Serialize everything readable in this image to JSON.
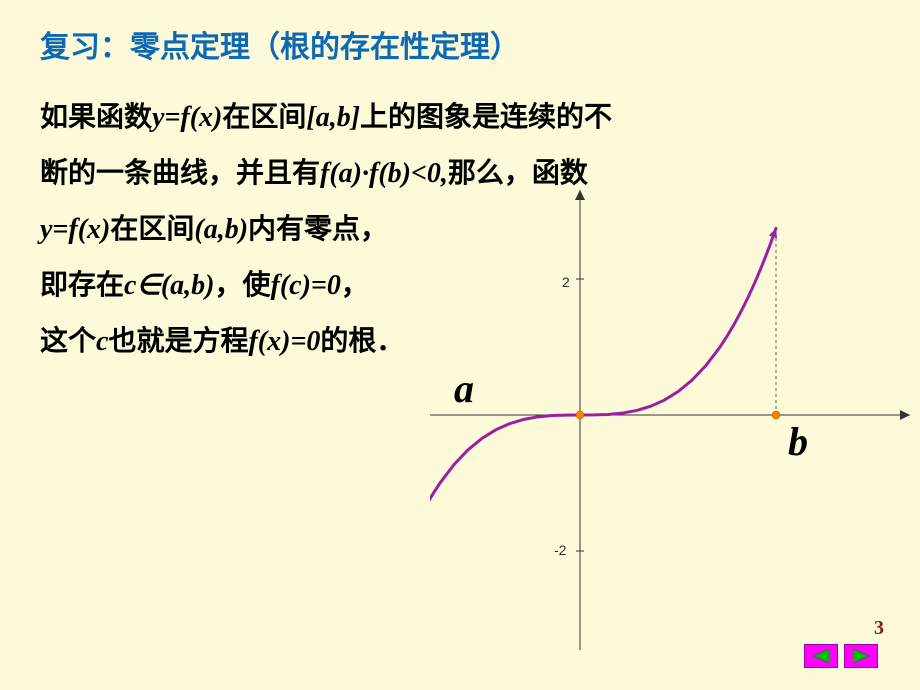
{
  "title": "复习：零点定理（根的存在性定理）",
  "para": {
    "l1a": "如果函数",
    "l1b": "y=f(x)",
    "l1c": "在区间",
    "l1d": "[a,b]",
    "l1e": "上的图象是连续的不",
    "l2a": "断的一条曲线，并且有",
    "l2b": "f(a)·f(b)<0,",
    "l2c": "那么，函数",
    "l3a": "y=f(x)",
    "l3b": "在区间",
    "l3c": "(a,b)",
    "l3d": "内有零点，",
    "l4a": "即存在",
    "l4b": "c∈(a,b)",
    "l4c": "，使",
    "l4d": "f(c)=0",
    "l4e": "，",
    "l5a": "这个",
    "l5b": "c",
    "l5c": "也就是方程",
    "l5d": "f(x)=0",
    "l5e": "的根．"
  },
  "chart": {
    "type": "line",
    "curve_color": "#9b1fa3",
    "curve_width": 3,
    "axis_color": "#333333",
    "axis_width": 1,
    "grid_dash": "3,3",
    "grid_color": "#666666",
    "background": "#fcfad8",
    "x_range": [
      -2,
      2
    ],
    "y_range": [
      -3,
      3
    ],
    "y_ticks": [
      {
        "v": 2,
        "label": "2"
      },
      {
        "v": -2,
        "label": "-2"
      }
    ],
    "a_x": -1.4,
    "b_x": 1.4,
    "zero_x": 0,
    "label_a": "a",
    "label_b": "b",
    "points": [
      [
        -1.4,
        -2.744
      ],
      [
        -1.35,
        -2.46
      ],
      [
        -1.3,
        -2.197
      ],
      [
        -1.25,
        -1.953
      ],
      [
        -1.2,
        -1.728
      ],
      [
        -1.15,
        -1.521
      ],
      [
        -1.1,
        -1.331
      ],
      [
        -1.05,
        -1.158
      ],
      [
        -1.0,
        -1.0
      ],
      [
        -0.9,
        -0.729
      ],
      [
        -0.8,
        -0.512
      ],
      [
        -0.7,
        -0.343
      ],
      [
        -0.6,
        -0.216
      ],
      [
        -0.5,
        -0.125
      ],
      [
        -0.4,
        -0.064
      ],
      [
        -0.3,
        -0.027
      ],
      [
        -0.2,
        -0.008
      ],
      [
        -0.1,
        -0.001
      ],
      [
        0.0,
        0.0
      ],
      [
        0.1,
        0.001
      ],
      [
        0.2,
        0.008
      ],
      [
        0.3,
        0.027
      ],
      [
        0.4,
        0.064
      ],
      [
        0.5,
        0.125
      ],
      [
        0.6,
        0.216
      ],
      [
        0.7,
        0.343
      ],
      [
        0.8,
        0.512
      ],
      [
        0.9,
        0.729
      ],
      [
        1.0,
        1.0
      ],
      [
        1.05,
        1.158
      ],
      [
        1.1,
        1.331
      ],
      [
        1.15,
        1.521
      ],
      [
        1.2,
        1.728
      ],
      [
        1.25,
        1.953
      ],
      [
        1.3,
        2.197
      ],
      [
        1.35,
        2.46
      ],
      [
        1.4,
        2.744
      ]
    ],
    "point_marker_color": "#ff8000",
    "arrow_color": "#9b1fa3"
  },
  "page_number": "3"
}
